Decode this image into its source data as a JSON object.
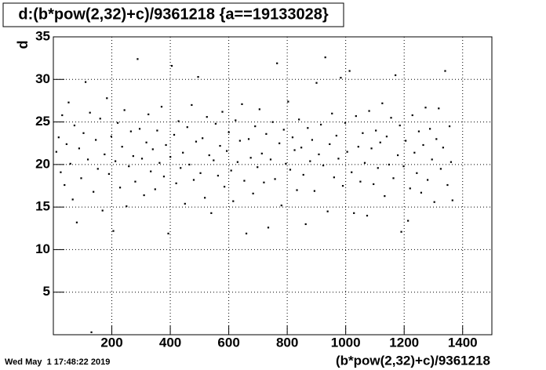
{
  "chart_data": {
    "type": "scatter",
    "title": "d:(b*pow(2,32)+c)/9361218 {a==19133028}",
    "x_label": "(b*pow(2,32)+c)/9361218",
    "y_label": "d",
    "timestamp": "Wed May  1 17:48:22 2019",
    "xlim": [
      0,
      1500
    ],
    "ylim": [
      0,
      35
    ],
    "xticks": [
      200,
      400,
      600,
      800,
      1000,
      1200,
      1400
    ],
    "yticks": [
      5,
      10,
      15,
      20,
      25,
      30,
      35
    ],
    "grid": true,
    "x": [
      10,
      18,
      25,
      30,
      38,
      45,
      52,
      58,
      66,
      72,
      80,
      88,
      95,
      103,
      110,
      118,
      125,
      130,
      137,
      145,
      152,
      160,
      168,
      175,
      183,
      190,
      198,
      205,
      212,
      220,
      228,
      235,
      243,
      250,
      258,
      265,
      273,
      280,
      288,
      295,
      303,
      310,
      318,
      325,
      333,
      340,
      348,
      355,
      363,
      370,
      378,
      385,
      393,
      400,
      405,
      413,
      420,
      428,
      435,
      443,
      450,
      458,
      465,
      473,
      480,
      488,
      495,
      503,
      510,
      518,
      525,
      533,
      540,
      548,
      555,
      563,
      570,
      578,
      585,
      593,
      600,
      608,
      615,
      623,
      630,
      638,
      645,
      653,
      660,
      668,
      675,
      683,
      690,
      698,
      705,
      713,
      720,
      728,
      735,
      743,
      750,
      758,
      765,
      773,
      780,
      788,
      795,
      803,
      810,
      818,
      825,
      833,
      840,
      848,
      855,
      863,
      870,
      878,
      885,
      893,
      900,
      908,
      915,
      923,
      930,
      938,
      945,
      953,
      960,
      968,
      975,
      983,
      990,
      998,
      1005,
      1013,
      1020,
      1028,
      1035,
      1043,
      1050,
      1058,
      1065,
      1073,
      1080,
      1088,
      1095,
      1103,
      1110,
      1118,
      1125,
      1133,
      1140,
      1148,
      1155,
      1163,
      1170,
      1178,
      1185,
      1190,
      1198,
      1205,
      1213,
      1220,
      1228,
      1235,
      1243,
      1250,
      1258,
      1265,
      1273,
      1280,
      1288,
      1295,
      1303,
      1310,
      1318,
      1325,
      1333,
      1340,
      1348,
      1355,
      1360,
      1365
    ],
    "series": [
      {
        "color": "#000000",
        "values": [
          21.5,
          23.2,
          19.1,
          25.8,
          17.6,
          22.4,
          27.3,
          20.1,
          15.9,
          24.6,
          13.2,
          21.9,
          18.4,
          23.7,
          29.7,
          20.6,
          26.1,
          0.3,
          16.8,
          22.9,
          19.5,
          25.4,
          14.6,
          21.2,
          27.8,
          18.9,
          23.3,
          12.2,
          20.4,
          24.9,
          17.3,
          22.1,
          26.4,
          15.1,
          19.8,
          23.9,
          21.0,
          18.0,
          32.4,
          24.2,
          20.7,
          16.4,
          22.6,
          25.9,
          19.2,
          21.8,
          17.1,
          24.0,
          20.2,
          26.8,
          18.6,
          22.3,
          11.9,
          20.9,
          31.6,
          23.5,
          17.8,
          25.1,
          19.6,
          21.4,
          15.4,
          24.4,
          20.0,
          27.0,
          18.2,
          22.7,
          30.3,
          19.0,
          23.1,
          16.1,
          25.6,
          21.1,
          14.3,
          20.5,
          24.8,
          18.7,
          22.2,
          26.2,
          17.4,
          21.6,
          23.8,
          19.3,
          15.7,
          25.2,
          20.3,
          22.8,
          27.1,
          18.1,
          11.9,
          23.0,
          20.8,
          16.6,
          24.5,
          19.7,
          26.5,
          21.3,
          17.9,
          23.6,
          12.6,
          20.6,
          25.0,
          18.3,
          31.9,
          22.5,
          15.2,
          24.1,
          20.1,
          27.4,
          19.4,
          23.2,
          21.7,
          17.0,
          25.3,
          22.0,
          18.8,
          13.0,
          24.3,
          20.4,
          22.9,
          16.9,
          29.6,
          21.2,
          24.7,
          19.9,
          32.6,
          14.5,
          22.4,
          26.0,
          18.5,
          23.4,
          20.7,
          30.2,
          17.5,
          24.9,
          21.5,
          31.0,
          19.1,
          14.3,
          25.7,
          22.1,
          18.0,
          23.7,
          20.2,
          14.0,
          26.3,
          21.9,
          17.7,
          24.0,
          19.6,
          22.6,
          27.2,
          16.3,
          23.3,
          20.0,
          25.5,
          18.4,
          30.5,
          21.1,
          24.6,
          12.1,
          19.8,
          22.8,
          13.4,
          17.2,
          25.8,
          21.4,
          19.0,
          23.9,
          16.7,
          22.3,
          26.7,
          18.2,
          24.2,
          20.6,
          15.6,
          23.0,
          26.6,
          19.5,
          22.0,
          31.0,
          17.6,
          24.5,
          20.3,
          15.8
        ]
      }
    ]
  }
}
